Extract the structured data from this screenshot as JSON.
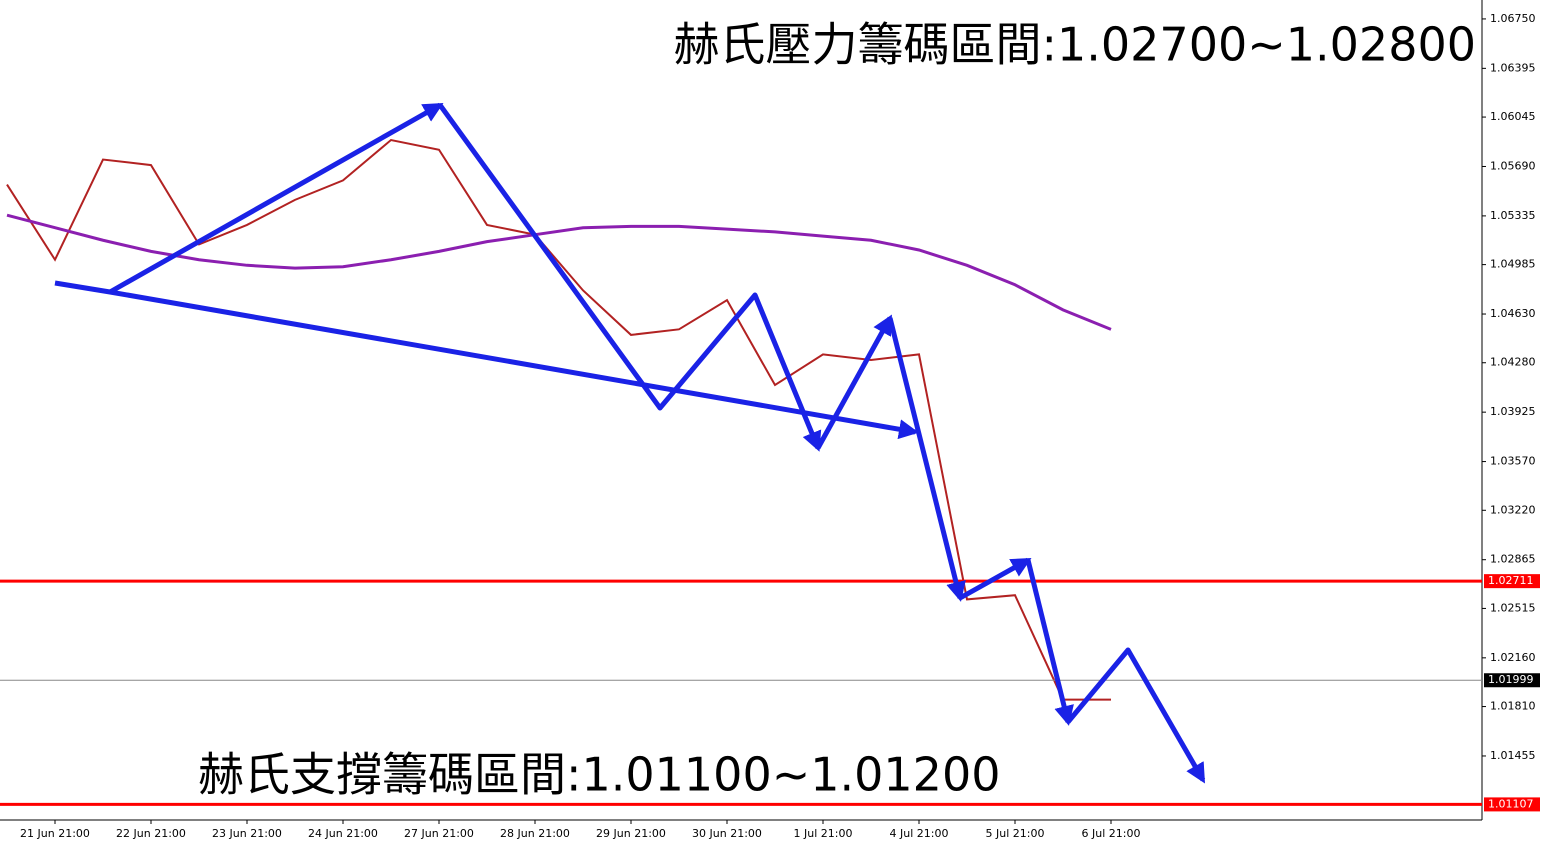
{
  "chart_data": {
    "type": "line",
    "annotations": [
      "赫氏壓力籌碼區間:1.02700~1.02800",
      "赫氏支撐籌碼區間:1.01100~1.01200"
    ],
    "categories": [
      null,
      "21 Jun 21:00",
      null,
      "22 Jun 21:00",
      null,
      "23 Jun 21:00",
      null,
      "24 Jun 21:00",
      null,
      "27 Jun 21:00",
      null,
      "28 Jun 21:00",
      null,
      "29 Jun 21:00",
      null,
      "30 Jun 21:00",
      null,
      "1 Jul 21:00",
      null,
      "4 Jul 21:00",
      null,
      "5 Jul 21:00",
      null,
      "6 Jul 21:00"
    ],
    "series": [
      {
        "color": "#b22222",
        "values": [
          1.0556,
          1.0502,
          1.0574,
          1.057,
          1.0513,
          1.0527,
          1.0545,
          1.0559,
          1.0588,
          1.0581,
          1.0527,
          1.052,
          1.048,
          1.0448,
          1.0452,
          1.0473,
          1.0412,
          1.0434,
          1.043,
          1.0434,
          1.0258,
          1.0261,
          1.0186,
          1.0186
        ]
      },
      {
        "color": "#8b1fb0",
        "values": [
          1.0534,
          1.0525,
          1.0516,
          1.0508,
          1.0502,
          1.0498,
          1.0496,
          1.0497,
          1.0502,
          1.0508,
          1.0515,
          1.052,
          1.0525,
          1.0526,
          1.0526,
          1.0524,
          1.0522,
          1.0519,
          1.0516,
          1.0509,
          1.0498,
          1.0484,
          1.0466,
          1.0452
        ]
      }
    ],
    "levels": [
      {
        "value": 1.02711,
        "color": "#ff0000"
      },
      {
        "value": 1.01107,
        "color": "#ff0000"
      },
      {
        "value": 1.01999,
        "color": "#000000"
      }
    ],
    "ylim": [
      1.00995,
      1.06886
    ],
    "yticks": [
      {
        "value": 1.0675,
        "label": "1.06750"
      },
      1.06395,
      {
        "value": 1.06045,
        "label": "1.06045"
      },
      {
        "value": 1.0569,
        "label": "1.05690"
      },
      1.05335,
      1.04985,
      {
        "value": 1.0463,
        "label": "1.04630"
      },
      {
        "value": 1.0428,
        "label": "1.04280"
      },
      1.03925,
      {
        "value": 1.0357,
        "label": "1.03570"
      },
      {
        "value": 1.0322,
        "label": "1.03220"
      },
      1.02865,
      1.02515,
      {
        "value": 1.0216,
        "label": "1.02160"
      },
      {
        "value": 1.0181,
        "label": "1.01810"
      },
      1.01455
    ]
  }
}
